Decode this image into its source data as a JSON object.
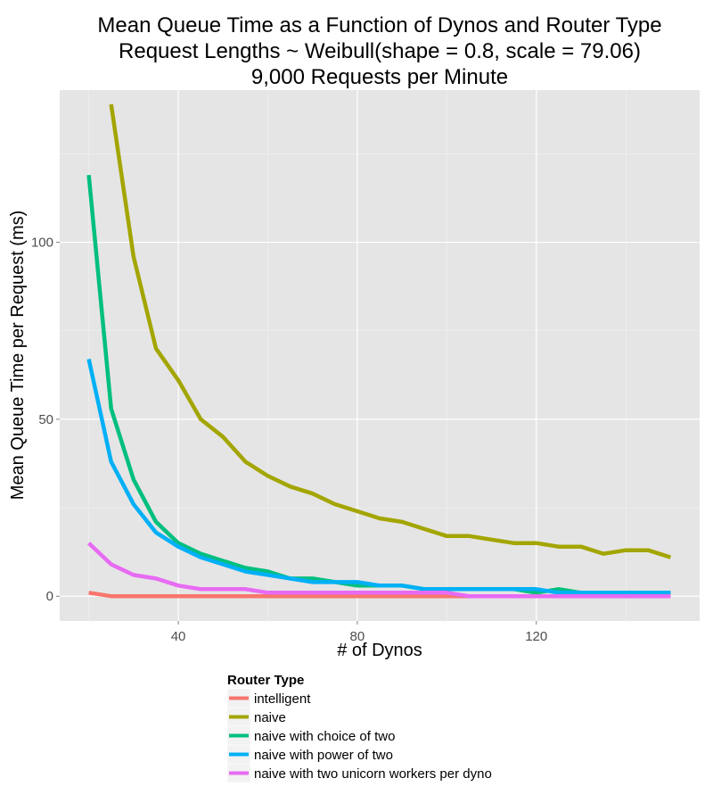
{
  "chart_data": {
    "type": "line",
    "title": [
      "Mean Queue Time as a Function of Dynos and Router Type",
      "Request Lengths ~ Weibull(shape = 0.8, scale = 79.06)",
      "9,000 Requests per Minute"
    ],
    "xlabel": "# of Dynos",
    "ylabel": "Mean Queue Time per Request (ms)",
    "xlim": [
      13.5,
      156.5
    ],
    "ylim": [
      -7,
      143
    ],
    "x_ticks": [
      40,
      80,
      120
    ],
    "x_minor_ticks": [
      20,
      60,
      100,
      140
    ],
    "y_ticks": [
      0,
      50,
      100
    ],
    "y_minor_ticks": [
      25,
      75,
      125
    ],
    "x_tick_labels": [
      "40",
      "80",
      "120"
    ],
    "y_tick_labels": [
      "0",
      "50",
      "100"
    ],
    "legend": {
      "title": "Router Type",
      "position": "bottom"
    },
    "x": [
      20,
      25,
      30,
      35,
      40,
      45,
      50,
      55,
      60,
      65,
      70,
      75,
      80,
      85,
      90,
      95,
      100,
      105,
      110,
      115,
      120,
      125,
      130,
      135,
      140,
      145,
      150
    ],
    "series": [
      {
        "name": "intelligent",
        "color": "#F8766D",
        "values": [
          1,
          0,
          0,
          0,
          0,
          0,
          0,
          0,
          0,
          0,
          0,
          0,
          0,
          0,
          0,
          0,
          0,
          0,
          0,
          0,
          0,
          0,
          0,
          0,
          0,
          0,
          0
        ]
      },
      {
        "name": "naive",
        "color": "#A3A500",
        "values": [
          null,
          139,
          96,
          70,
          61,
          50,
          45,
          38,
          34,
          31,
          29,
          26,
          24,
          22,
          21,
          19,
          17,
          17,
          16,
          15,
          15,
          14,
          14,
          12,
          13,
          13,
          11
        ]
      },
      {
        "name": "naive with choice of two",
        "color": "#00BF7D",
        "values": [
          119,
          53,
          33,
          21,
          15,
          12,
          10,
          8,
          7,
          5,
          5,
          4,
          3,
          3,
          3,
          2,
          2,
          2,
          2,
          2,
          1,
          2,
          1,
          1,
          1,
          1,
          1
        ]
      },
      {
        "name": "naive with power of two",
        "color": "#00B0F6",
        "values": [
          67,
          38,
          26,
          18,
          14,
          11,
          9,
          7,
          6,
          5,
          4,
          4,
          4,
          3,
          3,
          2,
          2,
          2,
          2,
          2,
          2,
          1,
          1,
          1,
          1,
          1,
          1
        ]
      },
      {
        "name": "naive with two unicorn workers per dyno",
        "color": "#E76BF3",
        "values": [
          15,
          9,
          6,
          5,
          3,
          2,
          2,
          2,
          1,
          1,
          1,
          1,
          1,
          1,
          1,
          1,
          1,
          0,
          0,
          0,
          0,
          0,
          0,
          0,
          0,
          0,
          0
        ]
      }
    ]
  }
}
